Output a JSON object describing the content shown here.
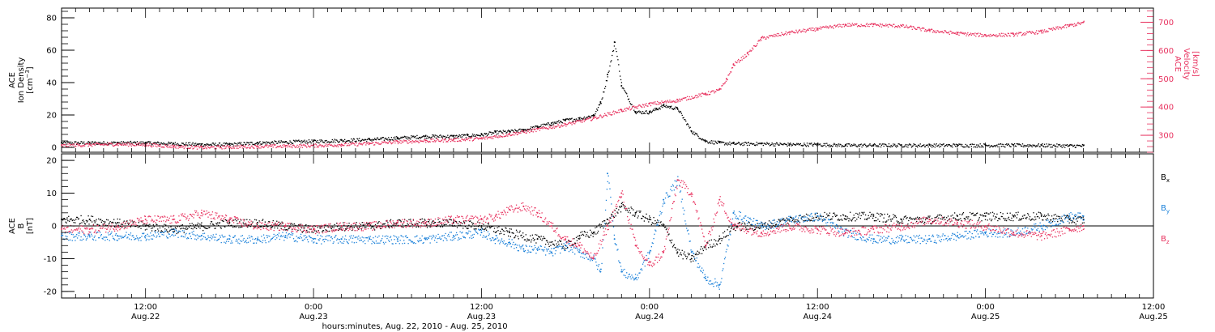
{
  "colors": {
    "black": "#000000",
    "pink": "#e8325f",
    "blue": "#1a80d9",
    "frame": "#000000"
  },
  "chart_data": {
    "type": "scatter",
    "xlabel": "hours:minutes, Aug. 22, 2010 - Aug. 25, 2010",
    "x_range_hours": [
      6,
      84
    ],
    "x_ticks": [
      {
        "hour": 12,
        "time": "12:00",
        "date": "Aug.22"
      },
      {
        "hour": 24,
        "time": "0:00",
        "date": "Aug.23"
      },
      {
        "hour": 36,
        "time": "12:00",
        "date": "Aug.23"
      },
      {
        "hour": 48,
        "time": "0:00",
        "date": "Aug.24"
      },
      {
        "hour": 60,
        "time": "12:00",
        "date": "Aug.24"
      },
      {
        "hour": 72,
        "time": "0:00",
        "date": "Aug.25"
      },
      {
        "hour": 84,
        "time": "12:00",
        "date": "Aug.25"
      }
    ],
    "panels": [
      {
        "name": "density-velocity",
        "left_axis": {
          "label_lines": [
            "ACE",
            "Ion Density"
          ],
          "unit_base": "[cm",
          "unit_sup": "−3",
          "unit_end": "]",
          "ylim": [
            -3,
            86
          ],
          "ticks": [
            0,
            20,
            40,
            60,
            80
          ],
          "color": "#000000"
        },
        "right_axis": {
          "label_lines": [
            "ACE",
            "Velocity",
            "[km/s]"
          ],
          "ylim": [
            240,
            750
          ],
          "ticks": [
            300,
            400,
            500,
            600,
            700
          ],
          "color": "#e8325f"
        },
        "series": [
          {
            "axis": "left",
            "color": "#000000",
            "x": [
              6,
              8,
              10,
              12,
              14,
              16,
              18,
              20,
              22,
              24,
              26,
              28,
              30,
              32,
              34,
              35,
              36,
              37,
              38,
              39,
              40,
              41,
              42,
              43,
              44,
              44.5,
              45,
              45.5,
              46,
              47,
              48,
              48.5,
              49,
              49.5,
              50,
              51,
              52,
              53,
              54,
              56,
              58,
              60,
              62,
              64,
              66,
              68,
              70,
              72,
              74,
              76,
              78,
              79
            ],
            "y": [
              3,
              3,
              3,
              3,
              2.5,
              2,
              2,
              3,
              3.5,
              4,
              4.5,
              5,
              6,
              7,
              7,
              7.5,
              8,
              9.5,
              10,
              11,
              13,
              15,
              17,
              18,
              20,
              28,
              45,
              65,
              38,
              22,
              22,
              24,
              26,
              25,
              24,
              10,
              4,
              3,
              2.5,
              2.5,
              2,
              2,
              1.5,
              1.5,
              1.5,
              1.5,
              1.5,
              1.5,
              1.5,
              1.5,
              1.2,
              1.2
            ]
          },
          {
            "axis": "right",
            "color": "#e8325f",
            "x": [
              6,
              8,
              10,
              12,
              14,
              16,
              18,
              20,
              22,
              24,
              26,
              28,
              30,
              32,
              34,
              36,
              38,
              40,
              42,
              44,
              46,
              48,
              50,
              52,
              53,
              53.5,
              54,
              55,
              56,
              58,
              60,
              62,
              64,
              66,
              68,
              70,
              72,
              74,
              76,
              78,
              79
            ],
            "y": [
              265,
              268,
              270,
              268,
              262,
              258,
              260,
              262,
              263,
              265,
              268,
              272,
              278,
              282,
              285,
              290,
              305,
              322,
              340,
              362,
              390,
              412,
              425,
              448,
              462,
              500,
              552,
              590,
              645,
              665,
              678,
              692,
              692,
              688,
              672,
              662,
              655,
              658,
              668,
              690,
              700
            ]
          }
        ]
      },
      {
        "name": "magnetic-field",
        "left_axis": {
          "label_lines": [
            "ACE",
            "B",
            "[nT]"
          ],
          "ylim": [
            -22,
            22
          ],
          "ticks": [
            -20,
            -10,
            0,
            10,
            20
          ],
          "color": "#000000"
        },
        "zero_line": true,
        "legend": [
          {
            "base": "B",
            "sub": "x",
            "color": "#000000"
          },
          {
            "base": "B",
            "sub": "y",
            "color": "#1a80d9"
          },
          {
            "base": "B",
            "sub": "z",
            "color": "#e8325f"
          }
        ],
        "series": [
          {
            "axis": "left",
            "color": "#000000",
            "x": [
              6,
              8,
              10,
              12,
              14,
              16,
              18,
              20,
              22,
              24,
              26,
              28,
              30,
              32,
              34,
              36,
              38,
              40,
              42,
              43,
              44,
              45,
              46,
              47,
              48,
              49,
              50,
              51,
              52,
              53,
              54,
              56,
              58,
              60,
              62,
              64,
              66,
              68,
              70,
              72,
              74,
              76,
              78,
              79
            ],
            "y": [
              2,
              2,
              1,
              0,
              -1,
              0,
              1,
              1,
              0,
              -1,
              0,
              0,
              1,
              1,
              1,
              0,
              -2,
              -4,
              -6,
              -3,
              -2,
              2,
              6,
              4,
              2,
              0,
              -8,
              -10,
              -6,
              -4,
              0,
              0,
              2,
              3,
              3,
              3,
              2,
              2,
              3,
              3,
              3,
              3,
              2,
              2
            ]
          },
          {
            "axis": "left",
            "color": "#1a80d9",
            "x": [
              6,
              8,
              10,
              12,
              14,
              16,
              18,
              20,
              22,
              24,
              26,
              28,
              30,
              32,
              34,
              36,
              37,
              38,
              39,
              40,
              41,
              42,
              43,
              44,
              44.5,
              45,
              45.5,
              46,
              47,
              48,
              49,
              50,
              51,
              52,
              53,
              54,
              56,
              58,
              60,
              62,
              64,
              66,
              68,
              70,
              72,
              74,
              76,
              78,
              79
            ],
            "y": [
              -3,
              -3,
              -3,
              -3,
              -2,
              -3,
              -4,
              -4,
              -3,
              -4,
              -4,
              -4,
              -4,
              -4,
              -3,
              -2,
              -4,
              -5,
              -7,
              -7,
              -8,
              -6,
              -8,
              -10,
              -14,
              16,
              -4,
              -14,
              -16,
              -8,
              8,
              14,
              -8,
              -16,
              -18,
              4,
              0,
              2,
              3,
              -2,
              -4,
              -4,
              -4,
              -3,
              -2,
              -2,
              0,
              3,
              3
            ]
          },
          {
            "axis": "left",
            "color": "#e8325f",
            "x": [
              6,
              8,
              10,
              12,
              14,
              16,
              18,
              20,
              22,
              24,
              26,
              28,
              30,
              32,
              34,
              36,
              37,
              38,
              39,
              40,
              41,
              42,
              43,
              44,
              45,
              46,
              47,
              48,
              49,
              50,
              51,
              52,
              53,
              54,
              56,
              58,
              60,
              62,
              64,
              66,
              68,
              70,
              72,
              74,
              76,
              78,
              79
            ],
            "y": [
              -1,
              -1,
              0,
              2,
              2,
              4,
              2,
              0,
              0,
              -1,
              0,
              0,
              1,
              1,
              2,
              2,
              3,
              5,
              6,
              4,
              0,
              -4,
              -6,
              -10,
              0,
              10,
              -6,
              -12,
              -8,
              14,
              10,
              -6,
              8,
              0,
              -2,
              0,
              -1,
              -2,
              -1,
              0,
              2,
              1,
              0,
              -2,
              -3,
              -1,
              0
            ]
          }
        ]
      }
    ]
  }
}
